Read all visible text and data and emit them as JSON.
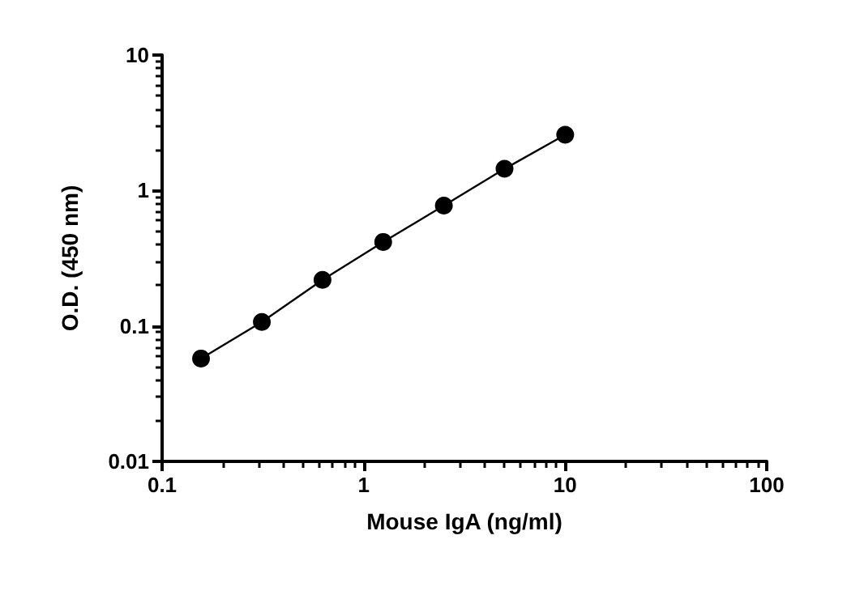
{
  "chart_data": {
    "type": "line",
    "xlabel": "Mouse IgA (ng/ml)",
    "ylabel": "O.D. (450 nm)",
    "log": "xy",
    "grid": false,
    "marker": "circle",
    "line_style": "solid",
    "x": [
      0.156,
      0.3125,
      0.625,
      1.25,
      2.5,
      5,
      10
    ],
    "series": [
      {
        "color": "#000000",
        "values": [
          0.0575,
          0.107,
          0.219,
          0.417,
          0.773,
          1.445,
          2.58
        ]
      }
    ],
    "xlim": [
      0.1,
      100
    ],
    "xticks": [
      0.1,
      1,
      10,
      100
    ],
    "ylim": [
      0.01,
      10
    ],
    "yticks": [
      0.01,
      0.1,
      1,
      10
    ]
  }
}
